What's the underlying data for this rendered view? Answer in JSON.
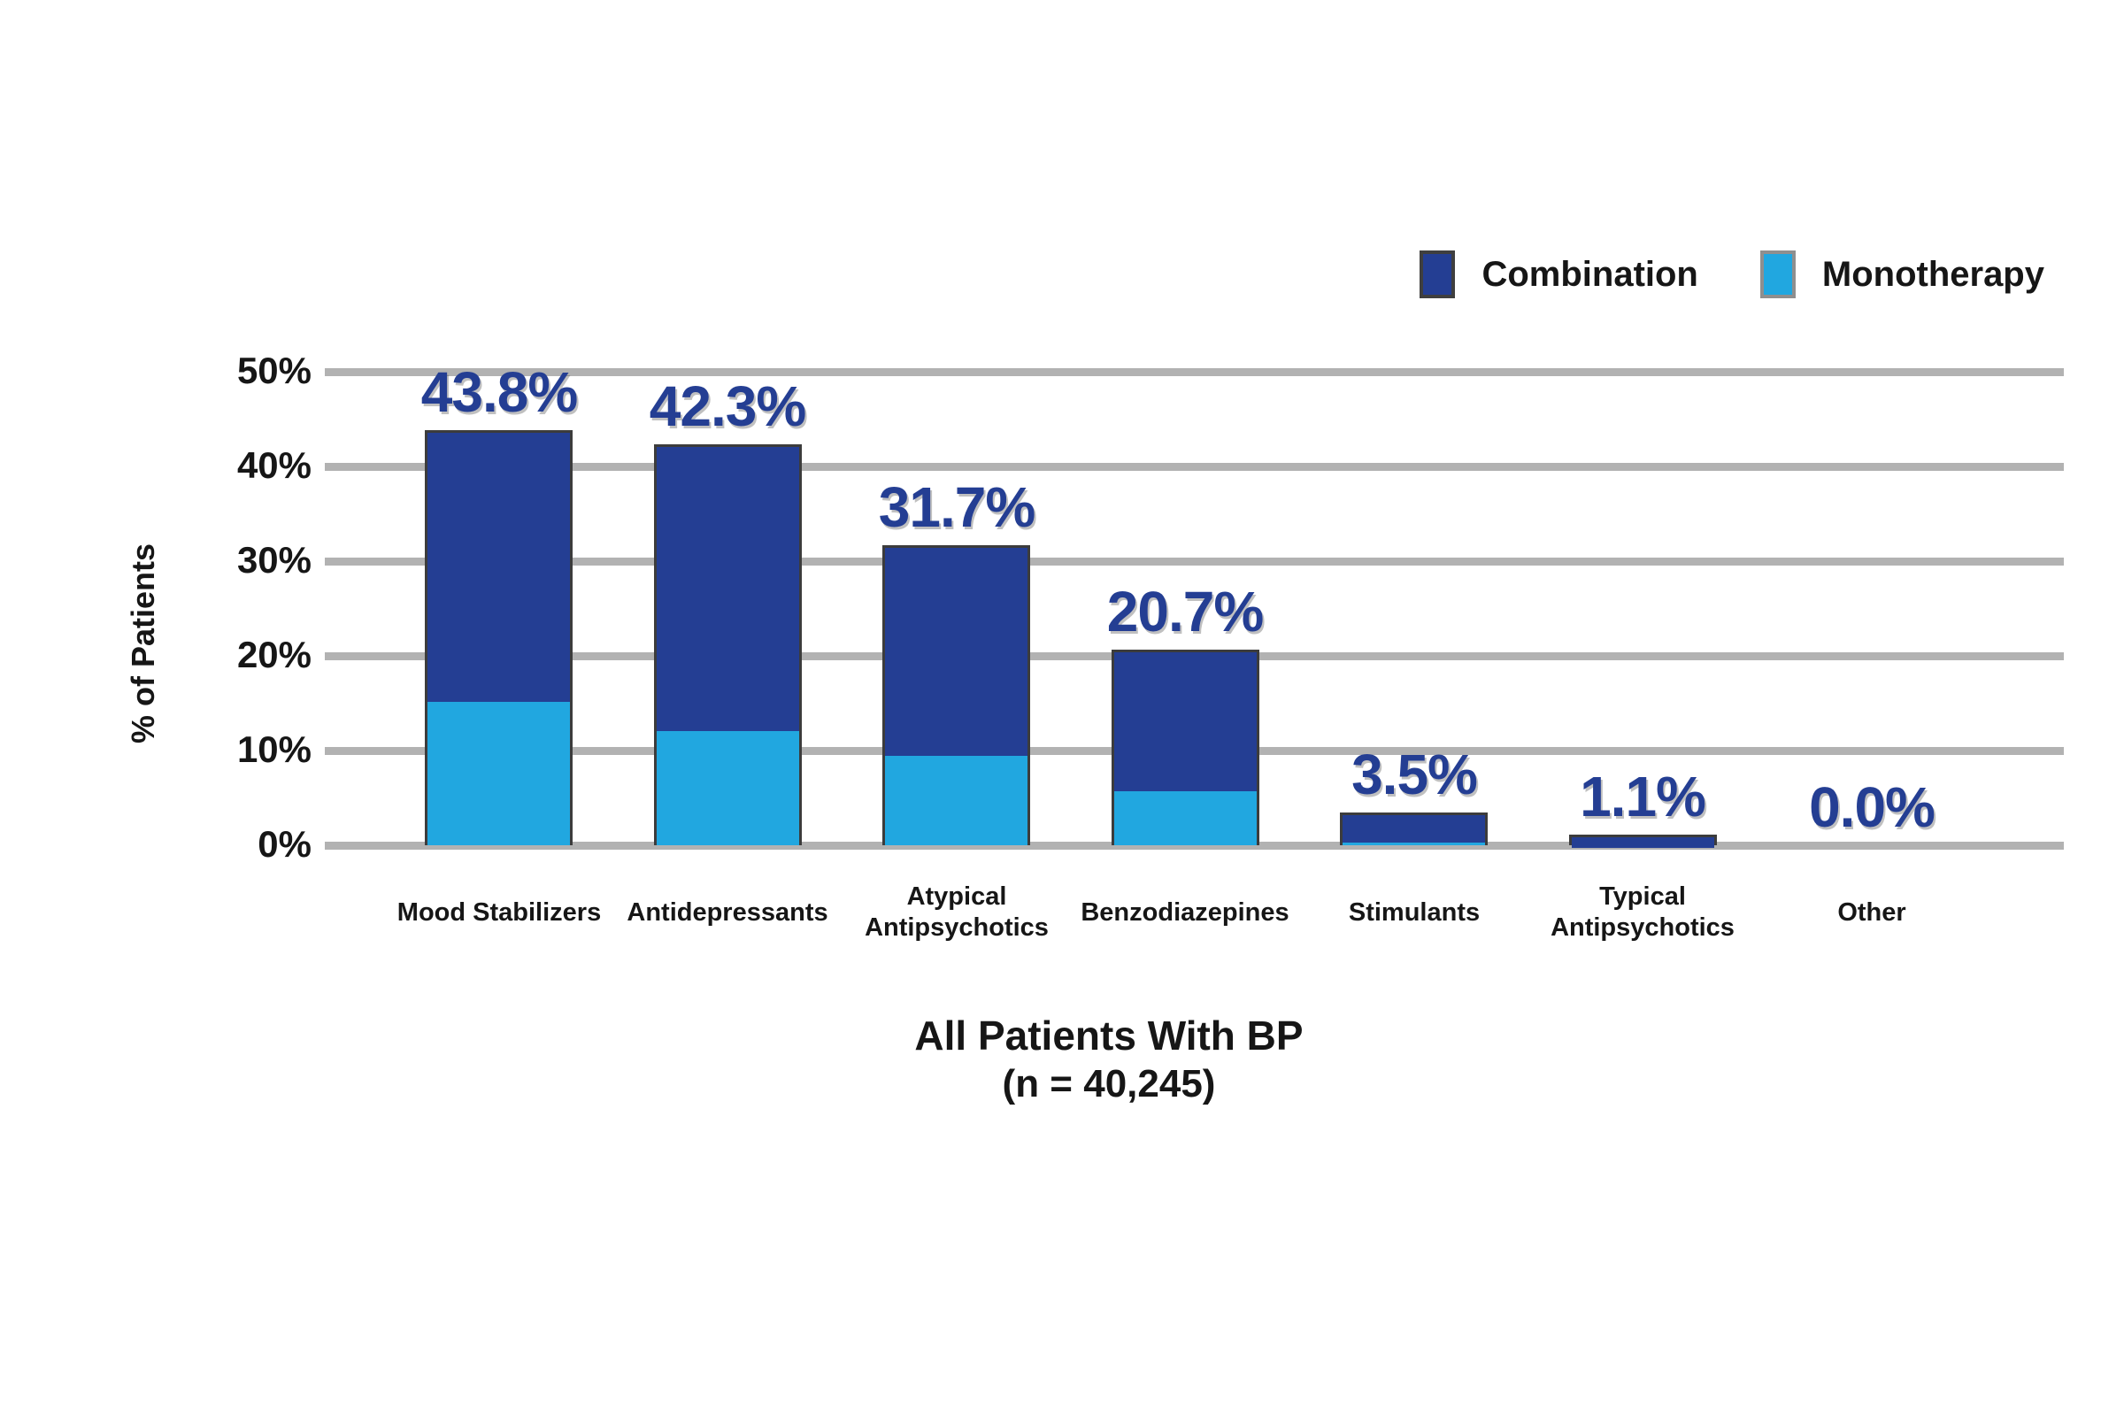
{
  "legend": {
    "items": [
      {
        "label": "Combination",
        "color": "#243E93"
      },
      {
        "label": "Monotherapy",
        "color": "#21A7E0"
      }
    ]
  },
  "chart_data": {
    "type": "bar",
    "stacked": true,
    "title": "",
    "ylabel": "% of Patients",
    "xlabel_group": {
      "line1": "All Patients With BP",
      "line2": "(n = 40,245)"
    },
    "ylim": [
      0,
      50
    ],
    "grid": "horizontal",
    "legend_position": "top-right",
    "yticks": [
      {
        "label": "0%",
        "value": 0
      },
      {
        "label": "10%",
        "value": 10
      },
      {
        "label": "20%",
        "value": 20
      },
      {
        "label": "30%",
        "value": 30
      },
      {
        "label": "40%",
        "value": 40
      },
      {
        "label": "50%",
        "value": 50
      }
    ],
    "categories": [
      "Mood Stabilizers",
      "Antidepressants",
      "Atypical\nAntipsychotics",
      "Benzodiazepines",
      "Stimulants",
      "Typical\nAntipsychotics",
      "Other"
    ],
    "series": [
      {
        "name": "Monotherapy",
        "color": "#21A7E0",
        "values": [
          15.4,
          12.3,
          9.7,
          6.0,
          0.6,
          0.0,
          0.0
        ]
      },
      {
        "name": "Combination",
        "color": "#243E93",
        "values": [
          28.4,
          30.0,
          22.0,
          14.7,
          2.9,
          1.1,
          0.0
        ]
      }
    ],
    "totals": [
      43.8,
      42.3,
      31.7,
      20.7,
      3.5,
      1.1,
      0.0
    ],
    "total_labels": [
      "43.8%",
      "42.3%",
      "31.7%",
      "20.7%",
      "3.5%",
      "1.1%",
      "0.0%"
    ],
    "colors": {
      "combination": "#243E93",
      "monotherapy": "#21A7E0",
      "gridline": "#b2b2b2",
      "value_label": "#243E93",
      "text": "#161616"
    }
  }
}
